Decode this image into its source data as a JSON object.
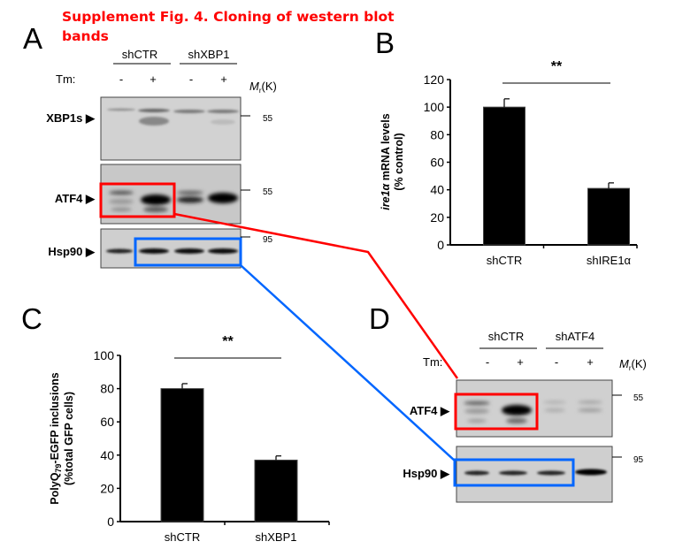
{
  "title": {
    "line1": "Supplement Fig. 4. Cloning of western blot",
    "line2": "bands",
    "color": "#ff0000"
  },
  "panel_a": {
    "letter": "A",
    "groups": [
      "shCTR",
      "shXBP1"
    ],
    "treatment_label": "Tm:",
    "treatment": [
      "-",
      "+",
      "-",
      "+"
    ],
    "mw_header": {
      "m": "M",
      "sub": "r",
      "unit": "(K)"
    },
    "blots": [
      {
        "label": "XBP1s ▶",
        "marker": "55"
      },
      {
        "label": "ATF4 ▶",
        "marker": "55"
      },
      {
        "label": "Hsp90 ▶",
        "marker": "95"
      }
    ]
  },
  "panel_d": {
    "letter": "D",
    "groups": [
      "shCTR",
      "shATF4"
    ],
    "treatment_label": "Tm:",
    "treatment": [
      "-",
      "+",
      "-",
      "+"
    ],
    "mw_header": {
      "m": "M",
      "sub": "r",
      "unit": "(K)"
    },
    "blots": [
      {
        "label": "ATF4 ▶",
        "marker": "55"
      },
      {
        "label": "Hsp90 ▶",
        "marker": "95"
      }
    ]
  },
  "highlight_colors": {
    "atf4": "#ff0000",
    "hsp90": "#0066ff"
  },
  "chart_data": [
    {
      "panel": "B",
      "type": "bar",
      "categories": [
        "shCTR",
        "shIRE1α"
      ],
      "values": [
        100,
        41
      ],
      "error": [
        6,
        4
      ],
      "ylabel_italic": "ire1α",
      "ylabel_rest": " mRNA levels",
      "ylabel_line2": "(% control)",
      "ylim": [
        0,
        120
      ],
      "yticks": [
        "0",
        "20",
        "40",
        "60",
        "80",
        "100",
        "120"
      ],
      "significance": "**",
      "bar_color": "#000000"
    },
    {
      "panel": "C",
      "type": "bar",
      "categories": [
        "shCTR",
        "shXBP1"
      ],
      "values": [
        80,
        37
      ],
      "error": [
        3,
        2.5
      ],
      "ylabel_pre": "PolyQ",
      "ylabel_sub": "79",
      "ylabel_rest": "-EGFP inclusions",
      "ylabel_line2": "(%total GFP cells)",
      "ylim": [
        0,
        100
      ],
      "yticks": [
        "0",
        "20",
        "40",
        "60",
        "80",
        "100"
      ],
      "significance": "**",
      "bar_color": "#000000"
    }
  ]
}
